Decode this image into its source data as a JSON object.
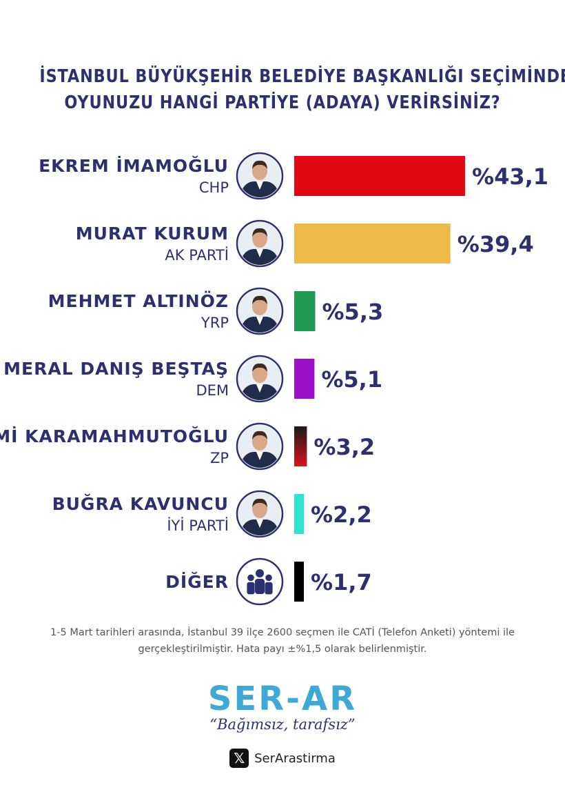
{
  "title_lines": [
    "İSTANBUL BÜYÜKŞEHİR BELEDİYE BAŞKANLIĞI SEÇİMİNDE",
    "OYUNUZU HANGİ PARTİYE (ADAYA) VERİRSİNİZ?"
  ],
  "chart_data": {
    "type": "bar",
    "orientation": "horizontal",
    "title": "İSTANBUL BÜYÜKŞEHİR BELEDİYE BAŞKANLIĞI SEÇİMİNDE OYUNUZU HANGİ PARTİYE (ADAYA) VERİRSİNİZ?",
    "categories": [
      "EKREM İMAMOĞLU",
      "MURAT KURUM",
      "MEHMET ALTINÖZ",
      "MERAL DANIŞ BEŞTAŞ",
      "AZMİ KARAMAHMUTOĞLU",
      "BUĞRA KAVUNCU",
      "DİĞER"
    ],
    "parties": [
      "CHP",
      "AK PARTİ",
      "YRP",
      "DEM",
      "ZP",
      "İYİ PARTİ",
      ""
    ],
    "values": [
      43.1,
      39.4,
      5.3,
      5.1,
      3.2,
      2.2,
      1.7
    ],
    "value_labels": [
      "%43,1",
      "%39,4",
      "%5,3",
      "%5,1",
      "%3,2",
      "%2,2",
      "%1,7"
    ],
    "colors": [
      "#e30613",
      "#f0b94c",
      "#1f9a54",
      "#9b10c8",
      "gradient-black-red",
      "#2ee3cf",
      "#000000"
    ],
    "icons": [
      "person-photo",
      "person-photo",
      "person-photo",
      "person-photo",
      "person-photo",
      "person-photo",
      "group-people-icon"
    ],
    "xlim": [
      0,
      43.1
    ],
    "grid": false,
    "legend": "none"
  },
  "note": "1-5 Mart tarihleri arasında, İstanbul 39 ilçe 2600 seçmen ile CATİ (Telefon Anketi) yöntemi ile gerçekleştirilmiştir. Hata payı ±%1,5 olarak belirlenmiştir.",
  "brand": {
    "logo": "SER-AR",
    "tagline": "“Bağımsız, tarafsız”",
    "social_handle": "SerArastirma",
    "social_icon": "x-icon",
    "color": "#3fa9d6"
  }
}
